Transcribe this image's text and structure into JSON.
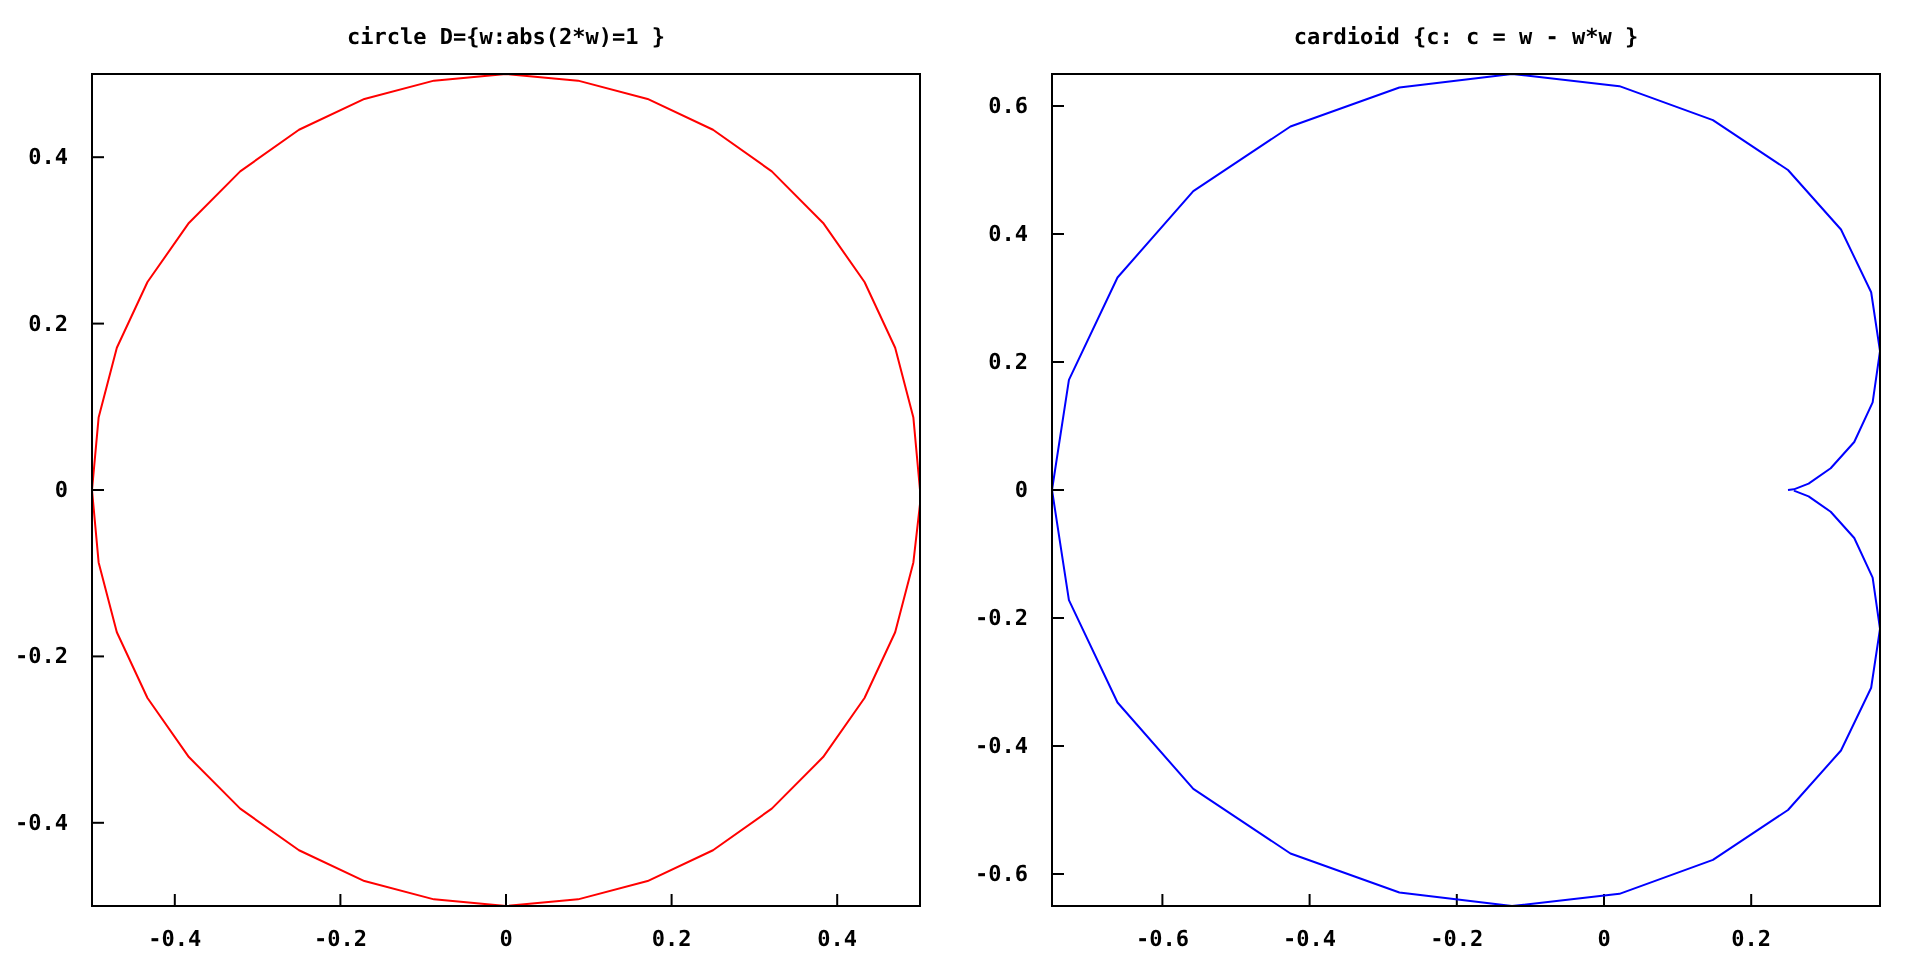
{
  "chart_data": [
    {
      "type": "line",
      "title": "circle D={w:abs(2*w)=1 }",
      "xlim": [
        -0.5,
        0.5
      ],
      "ylim": [
        -0.5,
        0.5
      ],
      "xticks": [
        -0.4,
        -0.2,
        0,
        0.2,
        0.4
      ],
      "yticks": [
        -0.4,
        -0.2,
        0,
        0.2,
        0.4
      ],
      "marker": "none",
      "line_style": "solid",
      "series": [
        {
          "color": "#ff0000",
          "x": [
            0.5,
            0.492,
            0.47,
            0.433,
            0.383,
            0.321,
            0.25,
            0.171,
            0.087,
            0,
            -0.087,
            -0.171,
            -0.25,
            -0.321,
            -0.383,
            -0.433,
            -0.47,
            -0.492,
            -0.5,
            -0.492,
            -0.47,
            -0.433,
            -0.383,
            -0.321,
            -0.25,
            -0.171,
            -0.087,
            0,
            0.087,
            0.171,
            0.25,
            0.321,
            0.383,
            0.433,
            0.47,
            0.492,
            0.5
          ],
          "values": [
            0,
            0.087,
            0.171,
            0.25,
            0.321,
            0.383,
            0.433,
            0.47,
            0.492,
            0.5,
            0.492,
            0.47,
            0.433,
            0.383,
            0.321,
            0.25,
            0.171,
            0.087,
            0,
            -0.087,
            -0.171,
            -0.25,
            -0.321,
            -0.383,
            -0.433,
            -0.47,
            -0.492,
            -0.5,
            -0.492,
            -0.47,
            -0.433,
            -0.383,
            -0.321,
            -0.25,
            -0.171,
            -0.087,
            -0.017
          ]
        }
      ]
    },
    {
      "type": "line",
      "title": "cardioid {c: c = w - w*w }",
      "xlim": [
        -0.75,
        0.375
      ],
      "ylim": [
        -0.65,
        0.65
      ],
      "xticks": [
        -0.6,
        -0.4,
        -0.2,
        0,
        0.2
      ],
      "yticks": [
        -0.6,
        -0.4,
        -0.2,
        0,
        0.2,
        0.4,
        0.6
      ],
      "marker": "none",
      "line_style": "solid",
      "series": [
        {
          "color": "#0000ff",
          "x": [
            0.25,
            0.258,
            0.278,
            0.308,
            0.34,
            0.365,
            0.375,
            0.363,
            0.322,
            0.25,
            0.148,
            0.021,
            -0.125,
            -0.278,
            -0.426,
            -0.558,
            -0.661,
            -0.727,
            -0.75,
            -0.727,
            -0.661,
            -0.558,
            -0.426,
            -0.278,
            -0.125,
            0.021,
            0.148,
            0.25,
            0.322,
            0.363,
            0.375,
            0.365,
            0.34,
            0.308,
            0.278,
            0.258
          ],
          "values": [
            0,
            0.001,
            0.01,
            0.034,
            0.075,
            0.137,
            0.217,
            0.309,
            0.407,
            0.5,
            0.578,
            0.631,
            0.65,
            0.629,
            0.568,
            0.467,
            0.332,
            0.172,
            0,
            -0.172,
            -0.332,
            -0.467,
            -0.568,
            -0.629,
            -0.65,
            -0.631,
            -0.578,
            -0.5,
            -0.407,
            -0.309,
            -0.217,
            -0.137,
            -0.075,
            -0.034,
            -0.01,
            -0.001
          ]
        }
      ]
    }
  ]
}
